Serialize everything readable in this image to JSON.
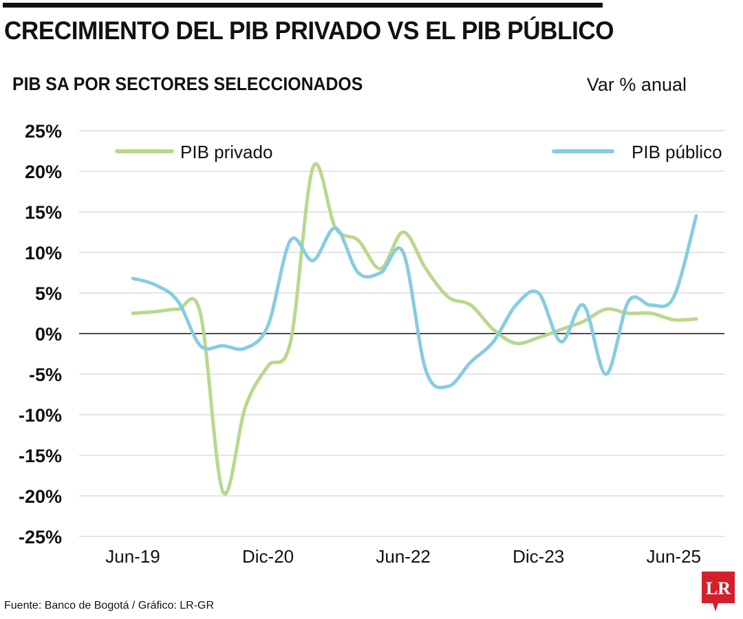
{
  "header": {
    "title": "CRECIMIENTO DEL PIB PRIVADO VS EL PIB PÚBLICO",
    "subtitle": "PIB SA POR SECTORES SELECCIONADOS",
    "unit": "Var % anual"
  },
  "footer": {
    "source": "Fuente: Banco de Bogotá / Gráfico: LR-GR",
    "logo_text": "LR"
  },
  "colors": {
    "privado": "#b9d88c",
    "publico": "#86cde0",
    "logo": "#d41f2b"
  },
  "chart_data": {
    "type": "line",
    "title": "PIB SA POR SECTORES SELECCIONADOS",
    "ylabel": "Var % anual",
    "ylim": [
      -25,
      25
    ],
    "y_ticks": [
      "25%",
      "20%",
      "15%",
      "10%",
      "5%",
      "0%",
      "-5%",
      "-10%",
      "-15%",
      "-20%",
      "-25%"
    ],
    "x_ticks": [
      "Jun-19",
      "Dic-20",
      "Jun-22",
      "Dic-23",
      "Jun-25"
    ],
    "x": [
      "Jun-19",
      "Sep-19",
      "Dic-19",
      "Mar-20",
      "Jun-20",
      "Sep-20",
      "Dic-20",
      "Mar-21",
      "Jun-21",
      "Sep-21",
      "Dic-21",
      "Mar-22",
      "Jun-22",
      "Sep-22",
      "Dic-22",
      "Mar-23",
      "Jun-23",
      "Sep-23",
      "Dic-23",
      "Mar-24",
      "Jun-24",
      "Sep-24",
      "Dic-24",
      "Mar-25",
      "Jun-25",
      "Sep-25"
    ],
    "series": [
      {
        "name": "PIB privado",
        "values": [
          2.5,
          2.7,
          3.0,
          2.5,
          -19.5,
          -9.0,
          -4.0,
          -1.0,
          20.5,
          13.0,
          11.5,
          8.0,
          12.5,
          8.0,
          4.5,
          3.5,
          0.5,
          -1.2,
          -0.5,
          0.5,
          1.5,
          3.0,
          2.5,
          2.5,
          1.7,
          1.8
        ]
      },
      {
        "name": "PIB público",
        "values": [
          6.8,
          6.0,
          4.0,
          -1.5,
          -1.5,
          -1.8,
          1.0,
          11.5,
          9.0,
          13.0,
          7.5,
          7.5,
          10.0,
          -4.5,
          -6.5,
          -3.5,
          -1.0,
          3.5,
          5.0,
          -1.0,
          3.5,
          -5.0,
          4.0,
          3.5,
          4.5,
          14.5
        ]
      }
    ],
    "legend": "top",
    "grid": true
  }
}
